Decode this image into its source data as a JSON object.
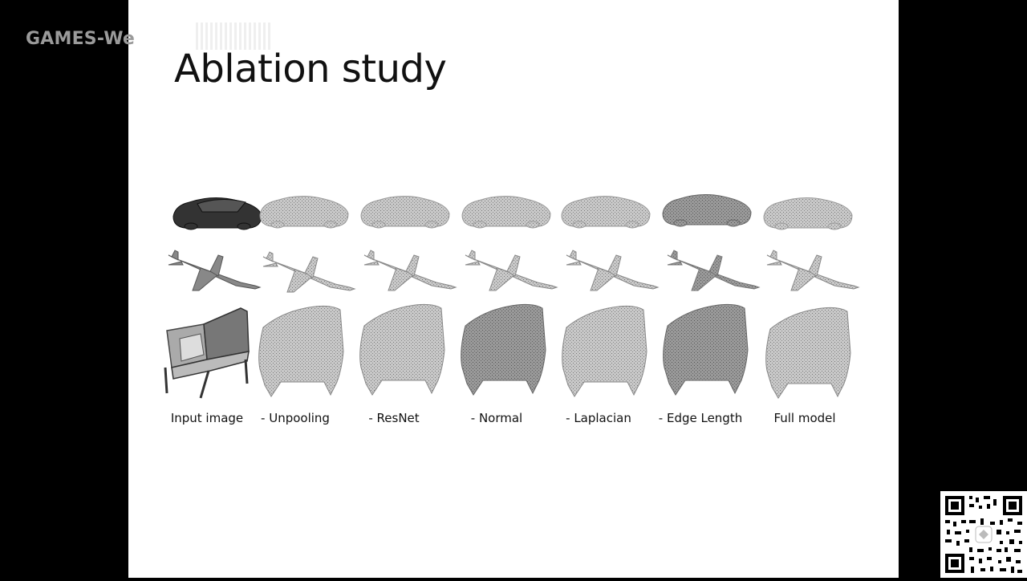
{
  "watermark": {
    "text": "GAMES-We"
  },
  "slide": {
    "title": "Ablation study",
    "columns": [
      {
        "label": "Input image"
      },
      {
        "label": "- Unpooling"
      },
      {
        "label": "- ResNet"
      },
      {
        "label": "- Normal"
      },
      {
        "label": "- Laplacian"
      },
      {
        "label": "- Edge Length"
      },
      {
        "label": "Full model"
      }
    ],
    "rows": [
      "car",
      "airplane",
      "chair"
    ]
  },
  "colors": {
    "background": "#000000",
    "slide": "#ffffff",
    "text": "#111111",
    "watermark": "#9a9a9a"
  },
  "icons": {
    "qr": "qr-code-icon"
  }
}
